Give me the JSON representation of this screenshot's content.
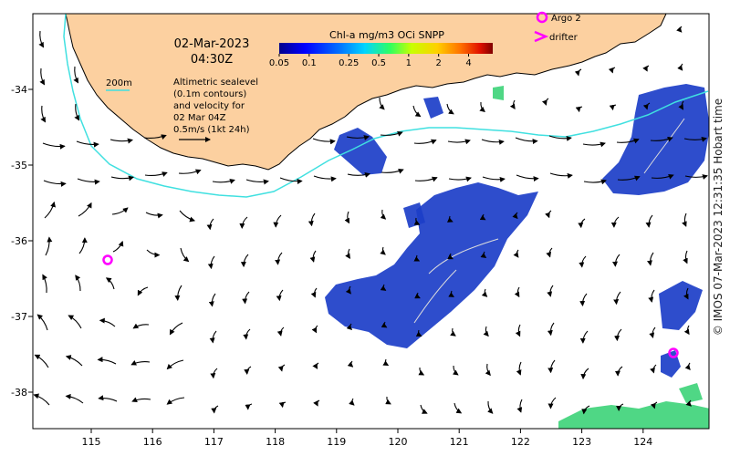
{
  "map": {
    "date": "02-Mar-2023",
    "time": "04:30Z",
    "depth_contour_label": "200m",
    "legend_text": [
      "Altimetric sealevel",
      "(0.1m contours)",
      "and velocity for",
      "02 Mar 04Z",
      "0.5m/s (1kt 24h)"
    ],
    "colorbar": {
      "title": "Chl-a mg/m3 OCi SNPP",
      "ticks": [
        "0.05",
        "0.1",
        "0.25",
        "0.5",
        "1",
        "2",
        "4"
      ],
      "tick_values": [
        0.05,
        0.1,
        0.25,
        0.5,
        1,
        2,
        4
      ],
      "range": [
        0.05,
        7
      ],
      "scale": "log",
      "colors": [
        "#00008c",
        "#0000ff",
        "#0070ff",
        "#00d4ff",
        "#30ff60",
        "#c8ff00",
        "#ffd000",
        "#ff7000",
        "#e01000",
        "#800000"
      ]
    },
    "markers": {
      "argo_label": "Argo 2",
      "drifter_label": "drifter",
      "argo_color": "#ff00ff"
    },
    "x_ticks": [
      "115",
      "116",
      "117",
      "118",
      "119",
      "120",
      "121",
      "122",
      "123",
      "124"
    ],
    "y_ticks": [
      "-34",
      "-35",
      "-36",
      "-37",
      "-38"
    ],
    "credit": "© IMOS 07-Mar-2023 12:31:35 Hobart time",
    "colors": {
      "land": "#fcd0a0",
      "contour": "#40e0e0",
      "chl_dark": "#1c3ec8"
    }
  }
}
